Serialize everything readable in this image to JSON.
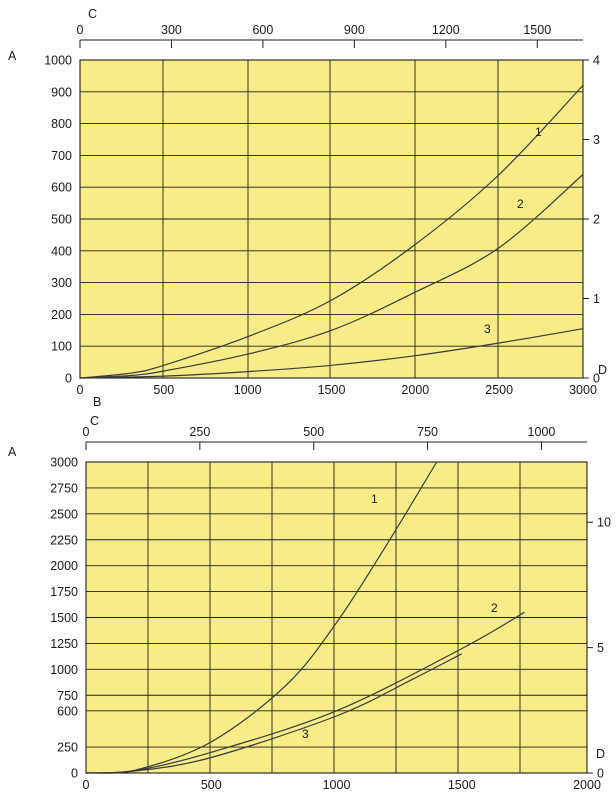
{
  "colors": {
    "plot_background": "#f7ec88",
    "grid": "#1f1f1f",
    "curve": "#3a3a3a",
    "text": "#1a1a1a"
  },
  "chart_data": [
    {
      "type": "line",
      "grid": true,
      "axes": {
        "bottom": {
          "letter": "B",
          "range": [
            0,
            3000
          ],
          "ticks": [
            0,
            500,
            1000,
            1500,
            2000,
            2500,
            3000
          ]
        },
        "left": {
          "letter": "A",
          "range": [
            0,
            1000
          ],
          "ticks": [
            0,
            100,
            200,
            300,
            400,
            500,
            600,
            700,
            800,
            900,
            1000
          ]
        },
        "top": {
          "letter": "C",
          "range": [
            0,
            1650
          ],
          "ticks": [
            0,
            300,
            600,
            900,
            1200,
            1500
          ]
        },
        "right": {
          "letter": "D",
          "range": [
            0,
            4
          ],
          "ticks": [
            0,
            1,
            2,
            3,
            4
          ]
        }
      },
      "series": [
        {
          "name": "1",
          "x": [
            0,
            300,
            500,
            1000,
            1500,
            2000,
            2500,
            3000
          ],
          "y": [
            0,
            15,
            40,
            130,
            245,
            420,
            640,
            920
          ]
        },
        {
          "name": "2",
          "x": [
            0,
            300,
            500,
            1000,
            1500,
            2000,
            2500,
            3000
          ],
          "y": [
            0,
            8,
            22,
            75,
            150,
            270,
            410,
            640
          ]
        },
        {
          "name": "3",
          "x": [
            0,
            500,
            1000,
            1500,
            2000,
            2500,
            3000
          ],
          "y": [
            0,
            6,
            20,
            40,
            70,
            110,
            155
          ]
        }
      ]
    },
    {
      "type": "line",
      "grid": true,
      "axes": {
        "bottom": {
          "letter": "",
          "range": [
            0,
            2000
          ],
          "ticks": [
            0,
            500,
            1000,
            1500,
            2000
          ]
        },
        "left": {
          "letter": "A",
          "range": [
            0,
            3000
          ],
          "ticks": [
            0,
            250,
            600,
            750,
            1000,
            1250,
            1500,
            1750,
            2000,
            2250,
            2500,
            2750,
            3000
          ]
        },
        "top": {
          "letter": "C",
          "range": [
            0,
            1100
          ],
          "ticks": [
            0,
            250,
            500,
            750,
            1000
          ]
        },
        "right": {
          "letter": "D",
          "range": [
            0,
            12.4
          ],
          "ticks": [
            0,
            5,
            10
          ]
        }
      },
      "series": [
        {
          "name": "1",
          "x": [
            0,
            200,
            500,
            800,
            1000,
            1200,
            1400
          ],
          "y": [
            0,
            30,
            300,
            850,
            1450,
            2200,
            3000
          ]
        },
        {
          "name": "2",
          "x": [
            0,
            200,
            500,
            1000,
            1500,
            1750
          ],
          "y": [
            0,
            25,
            200,
            600,
            1200,
            1550
          ]
        },
        {
          "name": "3",
          "x": [
            0,
            200,
            500,
            1000,
            1300,
            1500
          ],
          "y": [
            0,
            20,
            150,
            550,
            900,
            1150
          ]
        }
      ]
    }
  ]
}
